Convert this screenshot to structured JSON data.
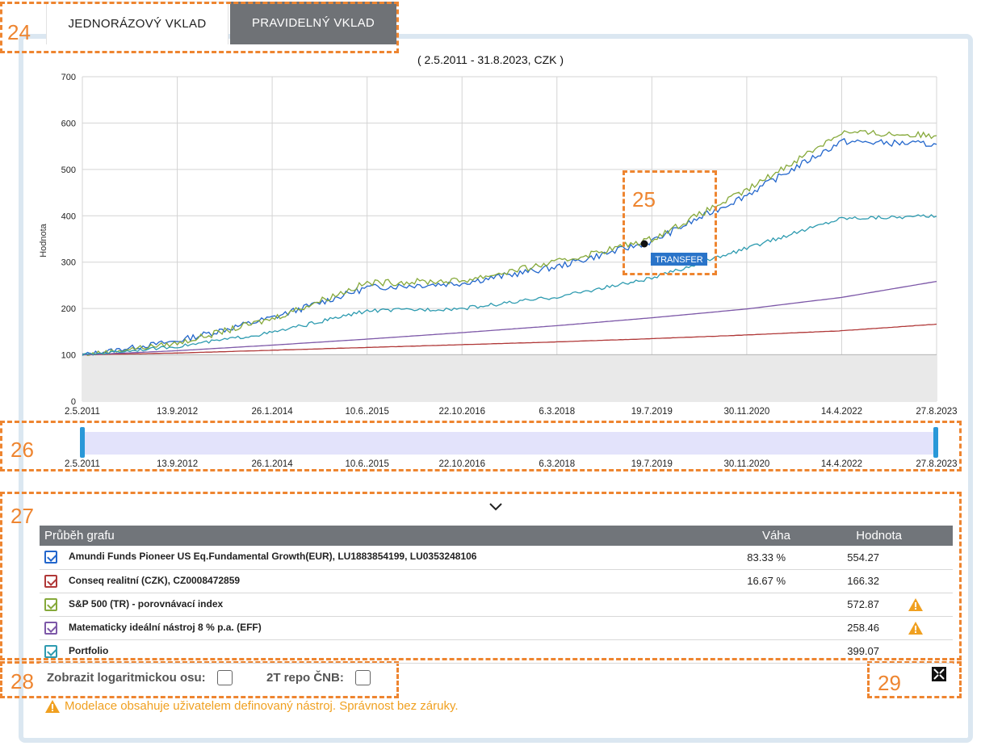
{
  "tabs": [
    {
      "label": "JEDNORÁZOVÝ VKLAD",
      "active": true
    },
    {
      "label": "PRAVIDELNÝ VKLAD",
      "active": false
    }
  ],
  "annotations": [
    "24",
    "25",
    "26",
    "27",
    "28",
    "29"
  ],
  "chart": {
    "subtitle": "( 2.5.2011 - 31.8.2023, CZK )",
    "ylabel": "Hodnota",
    "yticks": [
      "0",
      "100",
      "200",
      "300",
      "400",
      "500",
      "600",
      "700"
    ],
    "xticks": [
      "2.5.2011",
      "13.9.2012",
      "26.1.2014",
      "10.6..2015",
      "22.10.2016",
      "6.3.2018",
      "19.7.2019",
      "30.11.2020",
      "14.4.2022",
      "27.8.2023"
    ],
    "tooltip_label": "TRANSFER"
  },
  "chart_data": {
    "type": "line",
    "ylim": [
      0,
      700
    ],
    "x": [
      "2.5.2011",
      "13.9.2012",
      "26.1.2014",
      "10.6.2015",
      "22.10.2016",
      "6.3.2018",
      "19.7.2019",
      "30.11.2020",
      "14.4.2022",
      "27.8.2023"
    ],
    "series": [
      {
        "name": "Amundi Funds Pioneer US Eq.Fundamental Growth(EUR), LU1883854199, LU0353248106",
        "color": "#2266cc",
        "values": [
          100,
          130,
          180,
          245,
          255,
          290,
          345,
          445,
          560,
          554.27
        ]
      },
      {
        "name": "Conseq realitní (CZK), CZ0008472859",
        "color": "#b03838",
        "values": [
          100,
          104,
          110,
          116,
          122,
          128,
          135,
          143,
          152,
          166.32
        ]
      },
      {
        "name": "S&P 500 (TR) - porovnávací index",
        "color": "#86a93a",
        "values": [
          100,
          125,
          178,
          255,
          260,
          300,
          350,
          455,
          580,
          572.87
        ]
      },
      {
        "name": "Matematicky ideální nástroj 8 % p.a. (EFF)",
        "color": "#7d58a8",
        "values": [
          100,
          109,
          121,
          134,
          148,
          163,
          180,
          199,
          224,
          258.46
        ]
      },
      {
        "name": "Portfolio",
        "color": "#2e9bb0",
        "values": [
          100,
          118,
          148,
          195,
          200,
          225,
          265,
          330,
          395,
          399.07
        ]
      }
    ],
    "baseline": 100
  },
  "navigator": {
    "xticks": [
      "2.5.2011",
      "13.9.2012",
      "26.1.2014",
      "10.6..2015",
      "22.10.2016",
      "6.3.2018",
      "19.7.2019",
      "30.11.2020",
      "14.4.2022",
      "27.8.2023"
    ]
  },
  "legend": {
    "headers": {
      "name": "Průběh grafu",
      "weight": "Váha",
      "value": "Hodnota"
    },
    "rows": [
      {
        "name": "Amundi Funds Pioneer US Eq.Fundamental Growth(EUR), LU1883854199, LU0353248106",
        "weight": "83.33 %",
        "value": "554.27",
        "color": "#2266cc",
        "warn": false
      },
      {
        "name": "Conseq realitní (CZK), CZ0008472859",
        "weight": "16.67 %",
        "value": "166.32",
        "color": "#b03838",
        "warn": false
      },
      {
        "name": "S&P 500 (TR) - porovnávací index",
        "weight": "",
        "value": "572.87",
        "color": "#86a93a",
        "warn": true
      },
      {
        "name": "Matematicky ideální nástroj 8 % p.a. (EFF)",
        "weight": "",
        "value": "258.46",
        "color": "#7d58a8",
        "warn": true
      },
      {
        "name": "Portfolio",
        "weight": "",
        "value": "399.07",
        "color": "#2e9bb0",
        "warn": false
      }
    ]
  },
  "options": {
    "log_axis_label": "Zobrazit logaritmickou osu:",
    "repo_label": "2T repo ČNB:"
  },
  "note": "Modelace obsahuje uživatelem definovaný nástroj. Správnost bez záruky.",
  "colors": {
    "accent": "#ee8530",
    "warning": "#f0a020",
    "header": "#71757a"
  }
}
